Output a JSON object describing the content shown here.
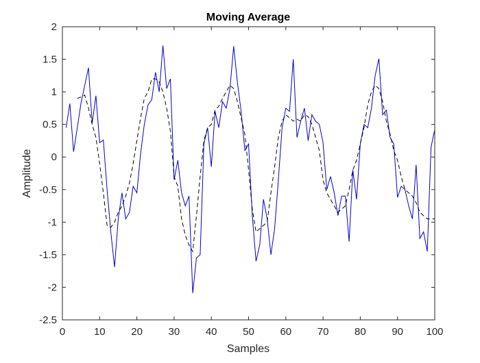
{
  "chart_data": {
    "type": "line",
    "title": "Moving Average",
    "xlabel": "Samples",
    "ylabel": "Amplitude",
    "xlim": [
      0,
      100
    ],
    "ylim": [
      -2.5,
      2
    ],
    "xticks": [
      "0",
      "10",
      "20",
      "30",
      "40",
      "50",
      "60",
      "70",
      "80",
      "90",
      "100"
    ],
    "yticks": [
      "-2.5",
      "-2",
      "-1.5",
      "-1",
      "-0.5",
      "0",
      "0.5",
      "1",
      "1.5",
      "2"
    ],
    "grid": false,
    "legend": "none",
    "series": [
      {
        "style": "solid",
        "color": "#0000cd",
        "x": [
          1,
          2,
          3,
          4,
          5,
          6,
          7,
          8,
          9,
          10,
          11,
          12,
          13,
          14,
          15,
          16,
          17,
          18,
          19,
          20,
          21,
          22,
          23,
          24,
          25,
          26,
          27,
          28,
          29,
          30,
          31,
          32,
          33,
          34,
          35,
          36,
          37,
          38,
          39,
          40,
          41,
          42,
          43,
          44,
          45,
          46,
          47,
          48,
          49,
          50,
          51,
          52,
          53,
          54,
          55,
          56,
          57,
          58,
          59,
          60,
          61,
          62,
          63,
          64,
          65,
          66,
          67,
          68,
          69,
          70,
          71,
          72,
          73,
          74,
          75,
          76,
          77,
          78,
          79,
          80,
          81,
          82,
          83,
          84,
          85,
          86,
          87,
          88,
          89,
          90,
          91,
          92,
          93,
          94,
          95,
          96,
          97,
          98,
          99,
          100
        ],
        "y": [
          0.45,
          0.82,
          0.08,
          0.45,
          0.83,
          1.1,
          1.37,
          0.52,
          0.94,
          0.22,
          0.26,
          -0.5,
          -1.15,
          -1.69,
          -0.95,
          -0.55,
          -0.95,
          -0.85,
          -0.45,
          -0.55,
          0.05,
          0.5,
          0.8,
          0.88,
          1.3,
          1.0,
          1.71,
          1.05,
          1.2,
          -0.35,
          -0.05,
          -0.55,
          -0.75,
          -0.6,
          -2.09,
          -1.55,
          -1.5,
          0.2,
          0.45,
          -0.15,
          0.7,
          0.45,
          0.85,
          0.75,
          1.05,
          1.7,
          1.15,
          0.7,
          0.1,
          0.2,
          -0.9,
          -1.6,
          -1.35,
          -0.65,
          -0.95,
          -1.5,
          -1.1,
          -0.35,
          0.45,
          0.75,
          0.7,
          1.5,
          0.3,
          0.55,
          0.75,
          0.25,
          0.65,
          0.55,
          0.5,
          0.22,
          -0.5,
          -0.3,
          -0.55,
          -0.9,
          -0.6,
          -0.6,
          -1.3,
          -0.2,
          -0.65,
          0.2,
          0.5,
          0.45,
          0.75,
          1.25,
          1.51,
          0.65,
          0.72,
          0.3,
          0.2,
          -0.62,
          -0.45,
          -0.5,
          -0.75,
          -0.95,
          -0.12,
          -1.25,
          -1.15,
          -1.45,
          0.15,
          0.42
        ]
      },
      {
        "style": "dashed",
        "color": "#000000",
        "x": [
          4,
          5,
          6,
          7,
          8,
          9,
          10,
          11,
          12,
          13,
          14,
          15,
          16,
          17,
          18,
          19,
          20,
          21,
          22,
          23,
          24,
          25,
          26,
          27,
          28,
          29,
          30,
          31,
          32,
          33,
          34,
          35,
          36,
          37,
          38,
          39,
          40,
          41,
          42,
          43,
          44,
          45,
          46,
          47,
          48,
          49,
          50,
          51,
          52,
          53,
          54,
          55,
          56,
          57,
          58,
          59,
          60,
          61,
          62,
          63,
          64,
          65,
          66,
          67,
          68,
          69,
          70,
          71,
          72,
          73,
          74,
          75,
          76,
          77,
          78,
          79,
          80,
          81,
          82,
          83,
          84,
          85,
          86,
          87,
          88,
          89,
          90,
          91,
          92,
          93,
          94,
          95,
          96,
          97,
          98,
          99,
          100
        ],
        "y": [
          0.9,
          0.92,
          0.95,
          0.75,
          0.5,
          0.3,
          -0.1,
          -0.55,
          -1.05,
          -1.08,
          -1.0,
          -0.85,
          -0.75,
          -0.6,
          -0.4,
          -0.1,
          0.25,
          0.6,
          0.9,
          1.0,
          1.2,
          1.2,
          1.15,
          1.0,
          0.75,
          0.4,
          -0.3,
          -0.45,
          -0.95,
          -1.2,
          -1.35,
          -1.45,
          -0.9,
          -0.3,
          0.25,
          0.45,
          0.5,
          0.72,
          0.78,
          0.9,
          1.0,
          1.1,
          1.05,
          0.85,
          0.6,
          0.35,
          -0.2,
          -0.8,
          -1.15,
          -1.1,
          -1.05,
          -1.0,
          -0.55,
          -0.15,
          0.3,
          0.55,
          0.65,
          0.6,
          0.55,
          0.58,
          0.55,
          0.65,
          0.62,
          0.5,
          0.3,
          0.1,
          -0.35,
          -0.55,
          -0.65,
          -0.75,
          -0.85,
          -0.8,
          -0.75,
          -0.5,
          -0.2,
          -0.05,
          0.2,
          0.45,
          0.8,
          1.0,
          1.1,
          1.05,
          0.85,
          0.55,
          0.35,
          0.1,
          -0.05,
          -0.3,
          -0.5,
          -0.55,
          -0.6,
          -0.7,
          -0.85,
          -0.9,
          -0.95,
          -0.95,
          -0.95
        ]
      }
    ]
  }
}
